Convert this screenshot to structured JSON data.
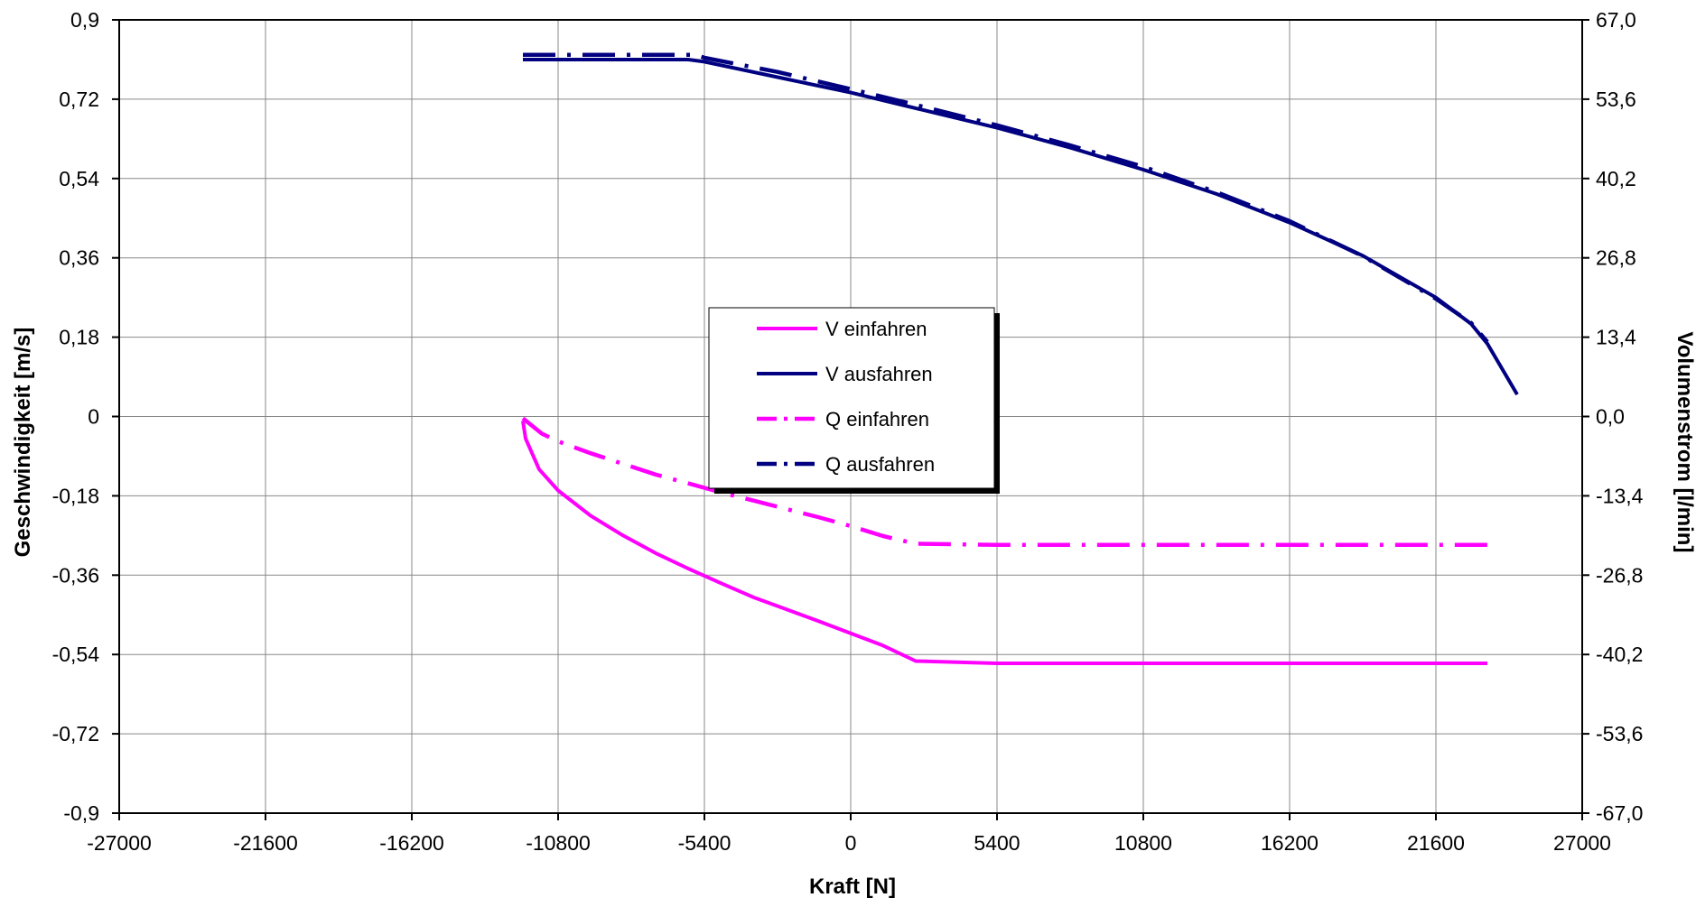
{
  "chart_data": {
    "type": "line",
    "xlabel": "Kraft [N]",
    "ylabel": "Geschwindigkeit [m/s]",
    "y2label": "Volumenstrom [l/min]",
    "xlim": [
      -27000,
      27000
    ],
    "ylim": [
      -0.9,
      0.9
    ],
    "y2lim": [
      -67.0,
      67.0
    ],
    "x_ticks": [
      "-27000",
      "-21600",
      "-16200",
      "-10800",
      "-5400",
      "0",
      "5400",
      "10800",
      "16200",
      "21600",
      "27000"
    ],
    "y_ticks": [
      "0,9",
      "0,72",
      "0,54",
      "0,36",
      "0,18",
      "0",
      "-0,18",
      "-0,36",
      "-0,54",
      "-0,72",
      "-0,9"
    ],
    "y2_ticks": [
      "67,0",
      "53,6",
      "40,2",
      "26,8",
      "13,4",
      "0,0",
      "-13,4",
      "-26,8",
      "-40,2",
      "-53,6",
      "-67,0"
    ],
    "grid": true,
    "legend_position": "center",
    "series": [
      {
        "name": "V einfahren",
        "axis": "left",
        "color": "#ff00ff",
        "style": "solid",
        "x": [
          -12100,
          -12000,
          -11500,
          -10800,
          -9600,
          -8400,
          -7200,
          -6000,
          -4800,
          -3600,
          -2400,
          -1200,
          0,
          1200,
          2400,
          5400,
          10800,
          16200,
          21600,
          23500
        ],
        "y": [
          -0.01,
          -0.05,
          -0.12,
          -0.168,
          -0.225,
          -0.27,
          -0.31,
          -0.345,
          -0.378,
          -0.41,
          -0.437,
          -0.464,
          -0.492,
          -0.52,
          -0.555,
          -0.56,
          -0.56,
          -0.56,
          -0.56,
          -0.56
        ]
      },
      {
        "name": "V ausfahren",
        "axis": "left",
        "color": "#000080",
        "style": "solid",
        "x": [
          -12100,
          -6000,
          -5400,
          -2700,
          0,
          2700,
          5400,
          8100,
          10800,
          13500,
          16200,
          18900,
          21600,
          22900,
          23500,
          24600
        ],
        "y": [
          0.81,
          0.81,
          0.805,
          0.77,
          0.735,
          0.695,
          0.655,
          0.61,
          0.56,
          0.505,
          0.44,
          0.365,
          0.27,
          0.21,
          0.165,
          0.05
        ]
      },
      {
        "name": "Q einfahren",
        "axis": "right",
        "color": "#ff00ff",
        "style": "dashdot",
        "x": [
          -12100,
          -11400,
          -10800,
          -9600,
          -8400,
          -7200,
          -6000,
          -4800,
          -3600,
          -2400,
          -1200,
          0,
          1200,
          2400,
          5400,
          10800,
          16200,
          21600,
          23500
        ],
        "y": [
          -0.3,
          -2.9,
          -4.2,
          -6.2,
          -8.0,
          -9.8,
          -11.3,
          -12.8,
          -14.2,
          -15.6,
          -17.0,
          -18.5,
          -20.2,
          -21.5,
          -21.7,
          -21.7,
          -21.7,
          -21.7,
          -21.7
        ]
      },
      {
        "name": "Q ausfahren",
        "axis": "right",
        "color": "#000080",
        "style": "dashdot",
        "x": [
          -12100,
          -5700,
          -5400,
          -2700,
          0,
          2700,
          5400,
          8100,
          10800,
          13500,
          16200,
          18900,
          21600,
          22900,
          23500
        ],
        "y": [
          61.1,
          61.1,
          60.6,
          58.2,
          55.3,
          52.3,
          49.2,
          45.8,
          42.2,
          37.9,
          33.0,
          27.1,
          19.9,
          15.8,
          12.6
        ]
      }
    ]
  }
}
